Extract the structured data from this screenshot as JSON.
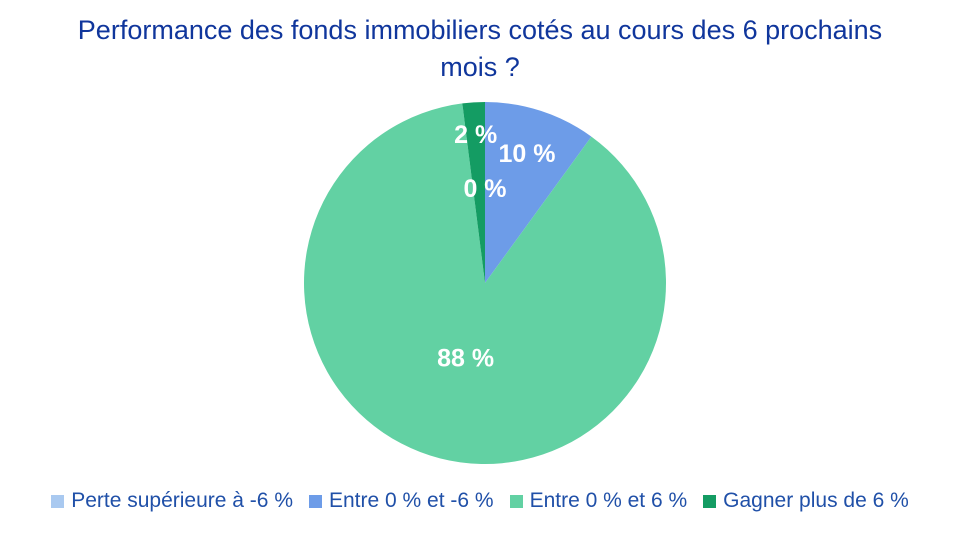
{
  "title": {
    "text": "Performance des fonds immobiliers cotés au cours des 6 prochains mois ?",
    "color": "#10369c"
  },
  "legend": {
    "text_color": "#2050a8",
    "position": "bottom"
  },
  "chart_data": {
    "type": "pie",
    "title": "Performance des fonds immobiliers cotés au cours des 6 prochains mois ?",
    "direction": "clockwise",
    "start_angle_deg": 0,
    "data_label_color": "#ffffff",
    "legend_position": "bottom",
    "slices": [
      {
        "label": "Perte supérieure à -6 %",
        "value": 0,
        "display": "0 %",
        "color": "#a9c9f0"
      },
      {
        "label": "Entre 0 % et -6 %",
        "value": 10,
        "display": "10 %",
        "color": "#6d9ce8"
      },
      {
        "label": "Entre 0 % et 6 %",
        "value": 88,
        "display": "88 %",
        "color": "#62d1a3"
      },
      {
        "label": "Gagner plus de 6 %",
        "value": 2,
        "display": "2 %",
        "color": "#149c63"
      }
    ]
  }
}
